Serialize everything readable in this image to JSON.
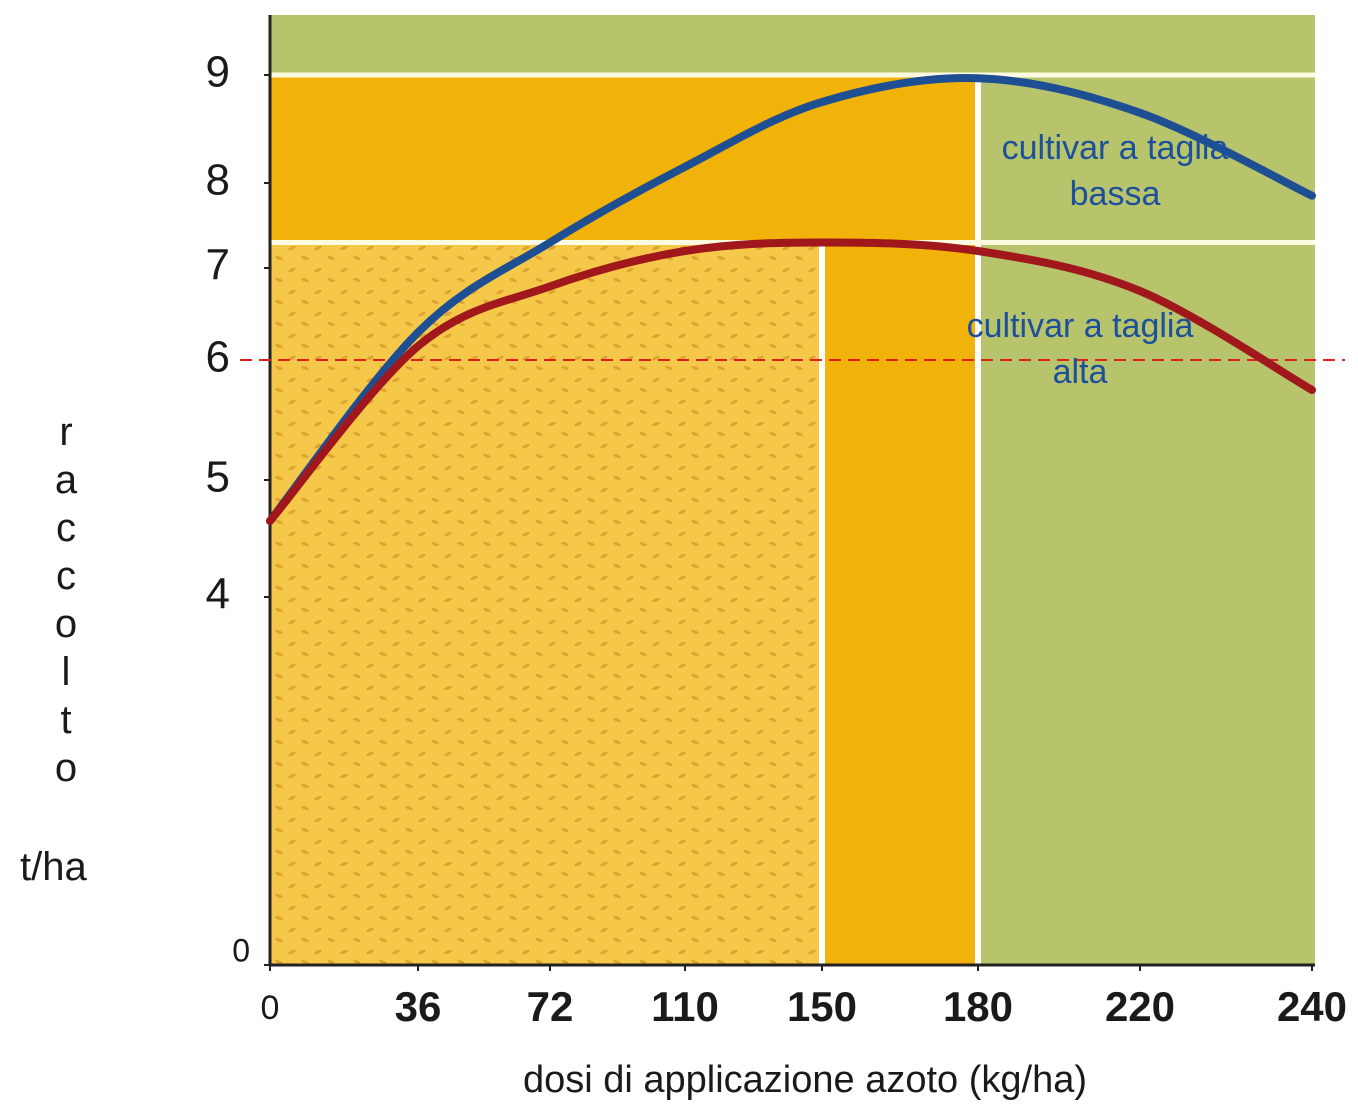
{
  "chart_data": {
    "type": "line",
    "x_label": "dosi di applicazione azoto (kg/ha)",
    "y_label": "raccolto",
    "y_unit": "t/ha",
    "x": [
      0,
      36,
      72,
      110,
      150,
      180,
      220,
      240
    ],
    "xlim": [
      0,
      240
    ],
    "xticks": [
      0,
      36,
      72,
      110,
      150,
      180,
      220,
      240
    ],
    "ylim": [
      0,
      9.5
    ],
    "yticks": [
      0,
      4,
      5,
      6,
      7,
      8,
      9
    ],
    "series": [
      {
        "name": "cultivar a taglia bassa",
        "color": "#1f4f93",
        "values": [
          4.65,
          6.3,
          7.3,
          8.15,
          8.75,
          8.97,
          8.65,
          7.85
        ]
      },
      {
        "name": "cultivar a taglia alta",
        "color": "#a0171c",
        "values": [
          4.65,
          6.15,
          6.8,
          7.2,
          7.3,
          7.2,
          6.75,
          5.75
        ]
      }
    ],
    "regions": [
      {
        "xmax": 180,
        "ymax": 9,
        "color": "#f1b30a"
      },
      {
        "xmax": 150,
        "ymax": 7.3,
        "color": "#f6c84a"
      }
    ],
    "background_color": "#b7c46c",
    "reference_line": {
      "value": 6,
      "color": "#e0201c"
    }
  }
}
